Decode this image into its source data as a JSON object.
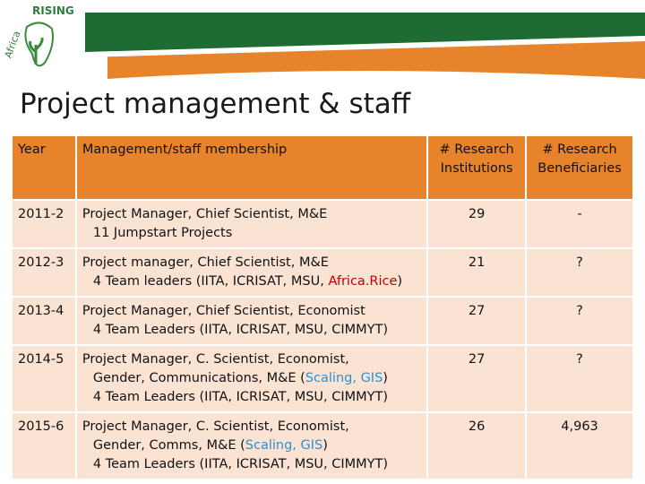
{
  "logo": {
    "line1": "Africa",
    "line2": "RISING"
  },
  "title": "Project management & staff",
  "table": {
    "header": [
      "Year",
      "Management/staff membership",
      "# Research Institutions",
      "# Research Beneficiaries"
    ],
    "rows": [
      {
        "year": "2011-2",
        "membership": [
          [
            {
              "text": "Project Manager, Chief Scientist, M&E"
            }
          ],
          [
            {
              "text": "11 Jumpstart Projects"
            }
          ]
        ],
        "institutions": "29",
        "beneficiaries": "-"
      },
      {
        "year": "2012-3",
        "membership": [
          [
            {
              "text": "Project manager, Chief Scientist, M&E"
            }
          ],
          [
            {
              "text": "4 Team leaders (IITA, ICRISAT, MSU, "
            },
            {
              "text": "Africa.Rice",
              "color": "#c00000"
            },
            {
              "text": ")"
            }
          ]
        ],
        "institutions": "21",
        "beneficiaries": "?"
      },
      {
        "year": "2013-4",
        "membership": [
          [
            {
              "text": "Project Manager, Chief Scientist, Economist"
            }
          ],
          [
            {
              "text": "4 Team Leaders (IITA, ICRISAT, MSU, CIMMYT)"
            }
          ]
        ],
        "institutions": "27",
        "beneficiaries": "?"
      },
      {
        "year": "2014-5",
        "membership": [
          [
            {
              "text": "Project Manager, C. Scientist, Economist,"
            }
          ],
          [
            {
              "text": "Gender, Communications, M&E ("
            },
            {
              "text": "Scaling, GIS",
              "color": "#2e8fd0"
            },
            {
              "text": ")"
            }
          ],
          [
            {
              "text": "4 Team Leaders (IITA, ICRISAT, MSU, CIMMYT)"
            }
          ]
        ],
        "institutions": "27",
        "beneficiaries": "?"
      },
      {
        "year": "2015-6",
        "membership": [
          [
            {
              "text": "Project Manager, C. Scientist, Economist,"
            }
          ],
          [
            {
              "text": "Gender, Comms, M&E ("
            },
            {
              "text": "Scaling, GIS",
              "color": "#2e8fd0"
            },
            {
              "text": ")"
            }
          ],
          [
            {
              "text": "4 Team Leaders (IITA, ICRISAT, MSU, CIMMYT)"
            }
          ]
        ],
        "institutions": "26",
        "beneficiaries": "4,963"
      }
    ]
  }
}
